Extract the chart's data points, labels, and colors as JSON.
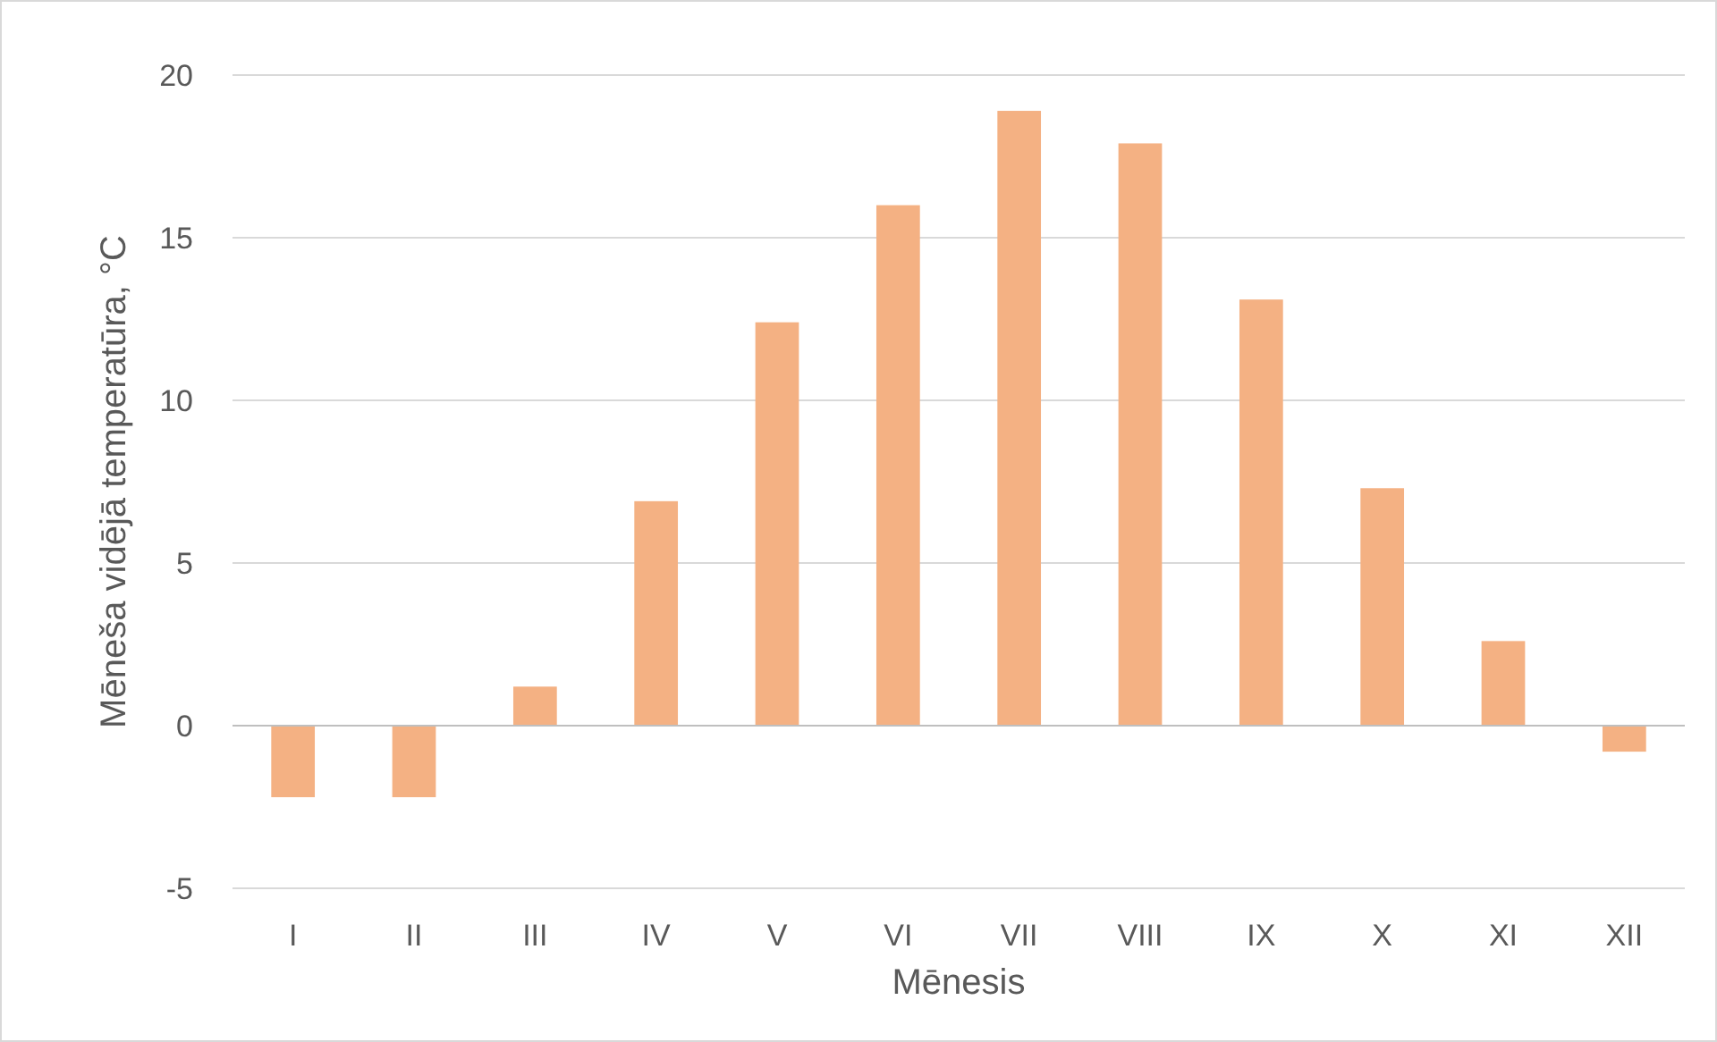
{
  "chart_data": {
    "type": "bar",
    "xlabel": "Mēnesis",
    "ylabel": "Mēneša vidējā temperatūra, °C",
    "categories": [
      "I",
      "II",
      "III",
      "IV",
      "V",
      "VI",
      "VII",
      "VIII",
      "IX",
      "X",
      "XI",
      "XII"
    ],
    "values": [
      -2.2,
      -2.2,
      1.2,
      6.9,
      12.4,
      16.0,
      18.9,
      17.9,
      13.1,
      7.3,
      2.6,
      -0.8
    ],
    "color": "#f4b183",
    "ylim": [
      -5,
      20
    ],
    "yticks": [
      -5,
      0,
      5,
      10,
      15,
      20
    ],
    "grid": "y"
  }
}
